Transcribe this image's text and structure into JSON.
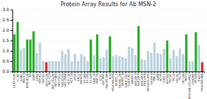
{
  "chart_data": {
    "type": "bar",
    "title": "Protein Array Results for Ab MSN-2",
    "categories": [
      "CCRF-CEM",
      "HL-60",
      "K-562",
      "MOLT-4",
      "RPMI-8226",
      "SR",
      "A549",
      "EKVX",
      "HOP-62",
      "HOP-92",
      "NCI-H226",
      "NCI-H23",
      "NCI-H322M",
      "NCI-H460",
      "NCI-H522",
      "COLO205",
      "HCC-2998",
      "HCT-116",
      "HCT-15",
      "HT29",
      "KM12",
      "SW-620",
      "SF-268",
      "SF-295",
      "SF-539",
      "SNB-19",
      "SNB-75",
      "U251",
      "LOX IMVI",
      "MALME-3M",
      "M14",
      "MDA-MB-435",
      "SK-MEL-2",
      "SK-MEL-28",
      "SK-MEL-5",
      "UACC-257",
      "UACC-62",
      "IGROV1",
      "OVCAR-3",
      "OVCAR-4",
      "OVCAR-5",
      "OVCAR-8",
      "NCI/ADR-RES",
      "SK-OV-3",
      "786-0",
      "A498",
      "ACHN",
      "CAKI-1",
      "RXF393",
      "SN12C",
      "TK-10",
      "UO-31",
      "PC-3",
      "DU-145",
      "MCF7",
      "MDA-MB-231/ATCC",
      "HS578T",
      "BT-549",
      "T-47D",
      "MDA-MB-468"
    ],
    "values": [
      1.8,
      2.4,
      1.05,
      1.15,
      1.55,
      1.55,
      1.95,
      0.9,
      1.4,
      0.5,
      0.45,
      0.5,
      0.5,
      0.5,
      0.5,
      1.0,
      0.85,
      1.1,
      0.5,
      0.85,
      0.5,
      0.85,
      0.75,
      0.5,
      1.55,
      0.8,
      1.8,
      0.65,
      0.7,
      1.05,
      1.7,
      0.75,
      0.8,
      0.75,
      0.7,
      0.65,
      1.2,
      1.15,
      0.8,
      2.2,
      0.6,
      0.55,
      1.0,
      0.9,
      1.4,
      0.9,
      0.85,
      1.1,
      1.5,
      0.65,
      1.05,
      0.75,
      1.1,
      0.85,
      1.8,
      0.5,
      0.5,
      1.9,
      1.3,
      0.45
    ],
    "colors": [
      "#22aa22",
      "#22aa22",
      "#b8d0dc",
      "#b8d0dc",
      "#22aa22",
      "#22aa22",
      "#22aa22",
      "#b8d0dc",
      "#b8d0dc",
      "#b8d0dc",
      "#cc2222",
      "#b8d0dc",
      "#b8d0dc",
      "#b8d0dc",
      "#b8d0dc",
      "#b8d0dc",
      "#b8d0dc",
      "#b8d0dc",
      "#b8d0dc",
      "#b8d0dc",
      "#b8d0dc",
      "#b8d0dc",
      "#b8d0dc",
      "#b8d0dc",
      "#22aa22",
      "#b8d0dc",
      "#22aa22",
      "#b8d0dc",
      "#b8d0dc",
      "#b8d0dc",
      "#22aa22",
      "#b8d0dc",
      "#b8d0dc",
      "#b8d0dc",
      "#b8d0dc",
      "#b8d0dc",
      "#b8d0dc",
      "#b8d0dc",
      "#b8d0dc",
      "#22aa22",
      "#b8d0dc",
      "#b8d0dc",
      "#b8d0dc",
      "#b8d0dc",
      "#b8d0dc",
      "#b8d0dc",
      "#b8d0dc",
      "#b8d0dc",
      "#22aa22",
      "#b8d0dc",
      "#b8d0dc",
      "#b8d0dc",
      "#b8d0dc",
      "#b8d0dc",
      "#22aa22",
      "#b8d0dc",
      "#b8d0dc",
      "#22aa22",
      "#b8d0dc",
      "#cc2222"
    ],
    "ylim": [
      0,
      3.0
    ],
    "yticks": [
      {
        "value": 0,
        "label": "0.0"
      },
      0.5,
      {
        "value": 1,
        "label": "1.0"
      },
      1.5,
      {
        "value": 2,
        "label": "2.0"
      },
      2.5,
      {
        "value": 3,
        "label": "3.0"
      }
    ],
    "grid": true
  }
}
